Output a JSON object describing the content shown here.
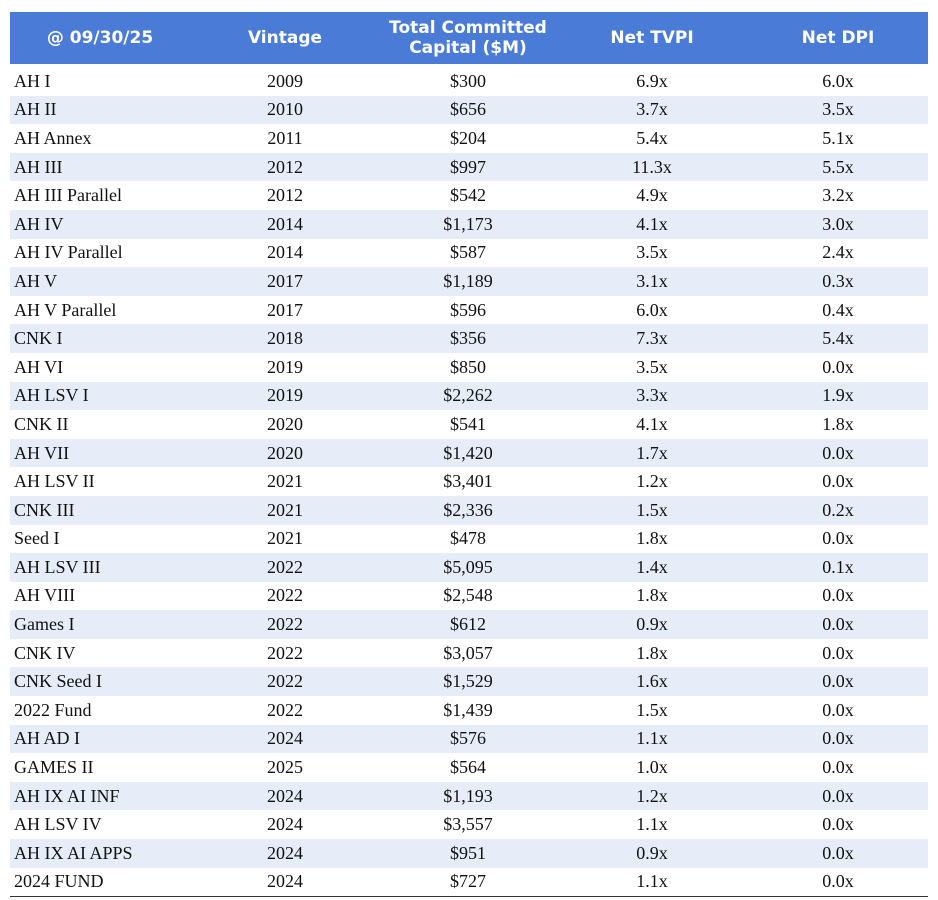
{
  "table": {
    "header": [
      "@ 09/30/25",
      "Vintage",
      "Total Committed Capital ($M)",
      "Net TVPI",
      "Net DPI"
    ],
    "rows": [
      [
        "AH I",
        "2009",
        "$300",
        "6.9x",
        "6.0x"
      ],
      [
        "AH II",
        "2010",
        "$656",
        "3.7x",
        "3.5x"
      ],
      [
        "AH Annex",
        "2011",
        "$204",
        "5.4x",
        "5.1x"
      ],
      [
        "AH III",
        "2012",
        "$997",
        "11.3x",
        "5.5x"
      ],
      [
        "AH III Parallel",
        "2012",
        "$542",
        "4.9x",
        "3.2x"
      ],
      [
        "AH IV",
        "2014",
        "$1,173",
        "4.1x",
        "3.0x"
      ],
      [
        "AH IV Parallel",
        "2014",
        "$587",
        "3.5x",
        "2.4x"
      ],
      [
        "AH V",
        "2017",
        "$1,189",
        "3.1x",
        "0.3x"
      ],
      [
        "AH V Parallel",
        "2017",
        "$596",
        "6.0x",
        "0.4x"
      ],
      [
        "CNK I",
        "2018",
        "$356",
        "7.3x",
        "5.4x"
      ],
      [
        "AH VI",
        "2019",
        "$850",
        "3.5x",
        "0.0x"
      ],
      [
        "AH LSV I",
        "2019",
        "$2,262",
        "3.3x",
        "1.9x"
      ],
      [
        "CNK II",
        "2020",
        "$541",
        "4.1x",
        "1.8x"
      ],
      [
        "AH VII",
        "2020",
        "$1,420",
        "1.7x",
        "0.0x"
      ],
      [
        "AH LSV II",
        "2021",
        "$3,401",
        "1.2x",
        "0.0x"
      ],
      [
        "CNK III",
        "2021",
        "$2,336",
        "1.5x",
        "0.2x"
      ],
      [
        "Seed I",
        "2021",
        "$478",
        "1.8x",
        "0.0x"
      ],
      [
        "AH LSV III",
        "2022",
        "$5,095",
        "1.4x",
        "0.1x"
      ],
      [
        "AH VIII",
        "2022",
        "$2,548",
        "1.8x",
        "0.0x"
      ],
      [
        "Games I",
        "2022",
        "$612",
        "0.9x",
        "0.0x"
      ],
      [
        "CNK IV",
        "2022",
        "$3,057",
        "1.8x",
        "0.0x"
      ],
      [
        "CNK Seed I",
        "2022",
        "$1,529",
        "1.6x",
        "0.0x"
      ],
      [
        "2022 Fund",
        "2022",
        "$1,439",
        "1.5x",
        "0.0x"
      ],
      [
        "AH AD I",
        "2024",
        "$576",
        "1.1x",
        "0.0x"
      ],
      [
        "GAMES II",
        "2025",
        "$564",
        "1.0x",
        "0.0x"
      ],
      [
        "AH IX AI INF",
        "2024",
        "$1,193",
        "1.2x",
        "0.0x"
      ],
      [
        "AH LSV IV",
        "2024",
        "$3,557",
        "1.1x",
        "0.0x"
      ],
      [
        "AH IX AI APPS",
        "2024",
        "$951",
        "0.9x",
        "0.0x"
      ],
      [
        "2024 FUND",
        "2024",
        "$727",
        "1.1x",
        "0.0x"
      ]
    ]
  }
}
